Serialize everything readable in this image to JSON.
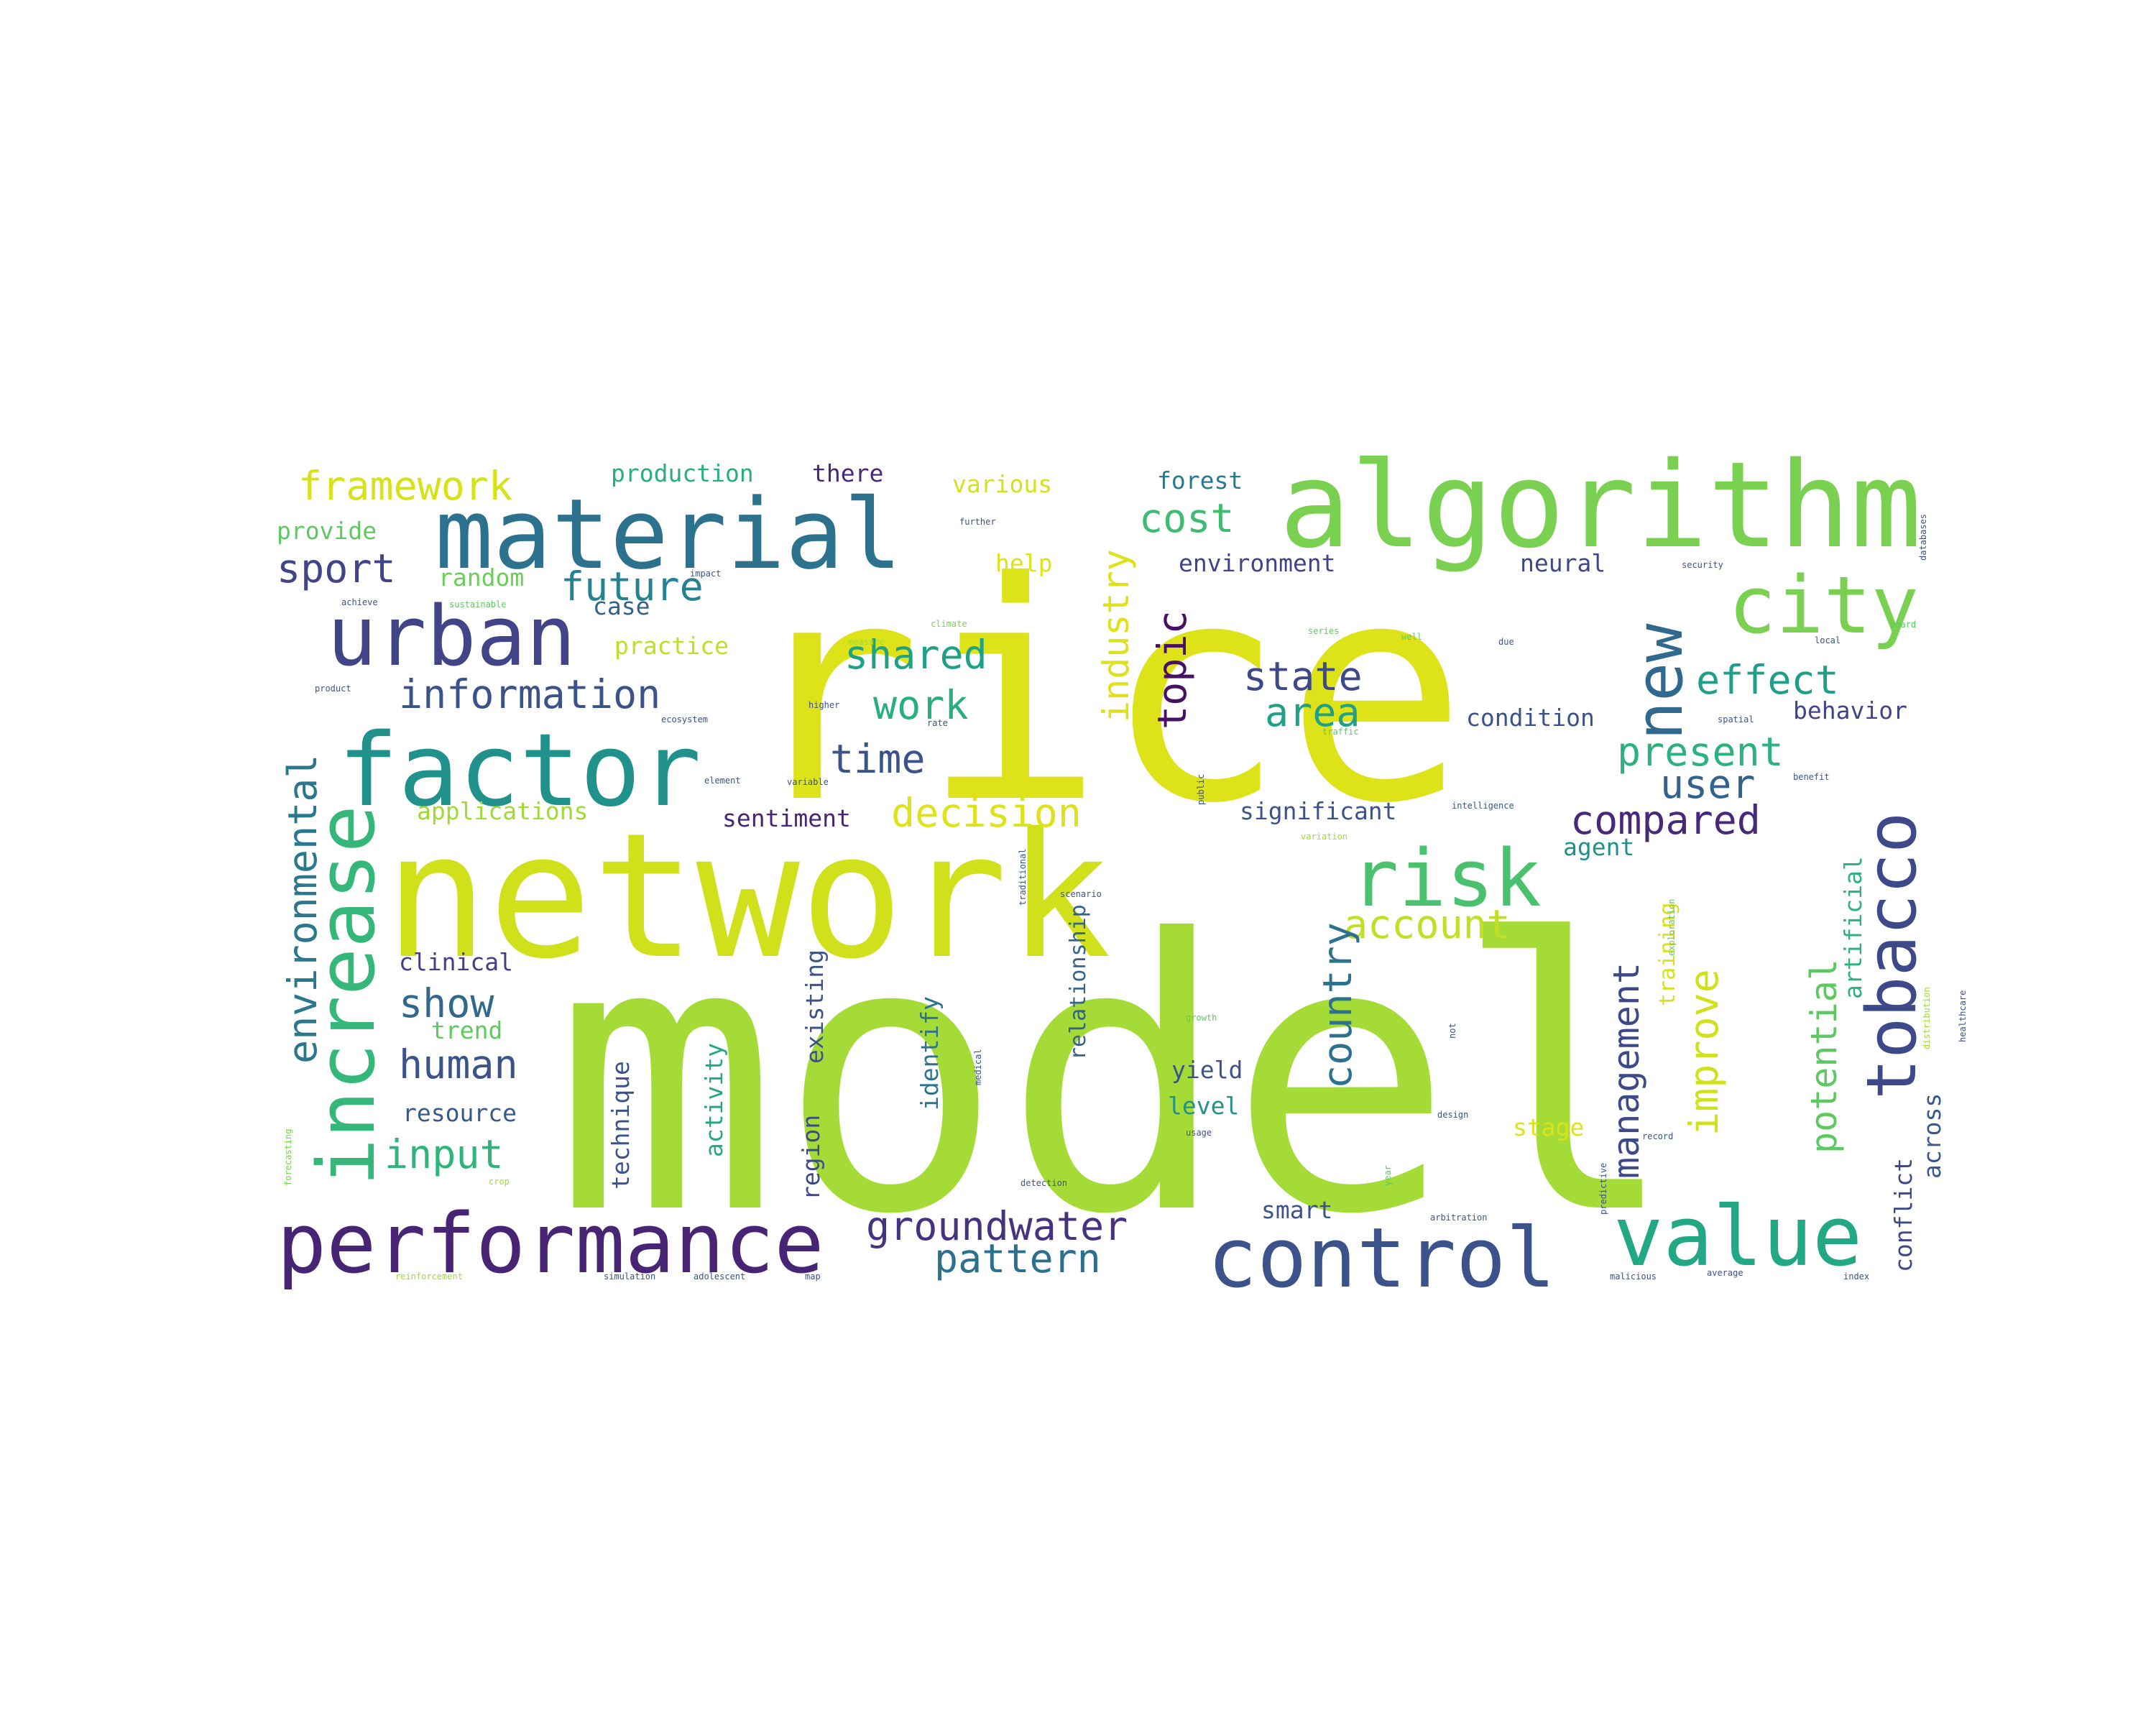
{
  "word_cloud": {
    "words": [
      {
        "text": "model",
        "color": "#a5db36"
      },
      {
        "text": "rice",
        "color": "#dde318"
      },
      {
        "text": "network",
        "color": "#d0e11c"
      },
      {
        "text": "algorithm",
        "color": "#7ad151"
      },
      {
        "text": "material",
        "color": "#2c728e"
      },
      {
        "text": "factor",
        "color": "#21918c"
      },
      {
        "text": "urban",
        "color": "#414487"
      },
      {
        "text": "performance",
        "color": "#482475"
      },
      {
        "text": "control",
        "color": "#3b528b"
      },
      {
        "text": "value",
        "color": "#22a884"
      },
      {
        "text": "tobacco",
        "color": "#3e4989"
      },
      {
        "text": "increase",
        "color": "#35b779"
      },
      {
        "text": "city",
        "color": "#7ad151"
      },
      {
        "text": "new",
        "color": "#31688e"
      },
      {
        "text": "risk",
        "color": "#4ac16d"
      },
      {
        "text": "framework",
        "color": "#d8e219"
      },
      {
        "text": "information",
        "color": "#3b528b"
      },
      {
        "text": "environmental",
        "color": "#2a788e"
      },
      {
        "text": "future",
        "color": "#26828e"
      },
      {
        "text": "groundwater",
        "color": "#46327e"
      },
      {
        "text": "decision",
        "color": "#dde318"
      },
      {
        "text": "shared",
        "color": "#1fa187"
      },
      {
        "text": "effect",
        "color": "#1f9e89"
      },
      {
        "text": "account",
        "color": "#c0df25"
      },
      {
        "text": "pattern",
        "color": "#2d708e"
      },
      {
        "text": "sport",
        "color": "#414487"
      },
      {
        "text": "cost",
        "color": "#3fbc73"
      },
      {
        "text": "industry",
        "color": "#dde318"
      },
      {
        "text": "topic",
        "color": "#471063"
      },
      {
        "text": "state",
        "color": "#3e4989"
      },
      {
        "text": "area",
        "color": "#1fa187"
      },
      {
        "text": "work",
        "color": "#29af7f"
      },
      {
        "text": "time",
        "color": "#3b528b"
      },
      {
        "text": "present",
        "color": "#2db27d"
      },
      {
        "text": "compared",
        "color": "#482878"
      },
      {
        "text": "user",
        "color": "#33638d"
      },
      {
        "text": "show",
        "color": "#31688e"
      },
      {
        "text": "human",
        "color": "#3b528b"
      },
      {
        "text": "input",
        "color": "#2fb47c"
      },
      {
        "text": "country",
        "color": "#2c728e"
      },
      {
        "text": "management",
        "color": "#3e4989"
      },
      {
        "text": "improve",
        "color": "#d0e11c"
      },
      {
        "text": "potential",
        "color": "#5ec962"
      },
      {
        "text": "production",
        "color": "#26ad81"
      },
      {
        "text": "there",
        "color": "#482878"
      },
      {
        "text": "various",
        "color": "#d5e21a"
      },
      {
        "text": "forest",
        "color": "#2a788e"
      },
      {
        "text": "provide",
        "color": "#5ec962"
      },
      {
        "text": "help",
        "color": "#dde318"
      },
      {
        "text": "environment",
        "color": "#404387"
      },
      {
        "text": "neural",
        "color": "#3f4788"
      },
      {
        "text": "random",
        "color": "#6ccd5a"
      },
      {
        "text": "case",
        "color": "#33638d"
      },
      {
        "text": "practice",
        "color": "#bddf26"
      },
      {
        "text": "condition",
        "color": "#3b528b"
      },
      {
        "text": "behavior",
        "color": "#404387"
      },
      {
        "text": "applications",
        "color": "#a0da39"
      },
      {
        "text": "sentiment",
        "color": "#482475"
      },
      {
        "text": "significant",
        "color": "#3b528b"
      },
      {
        "text": "agent",
        "color": "#21918c"
      },
      {
        "text": "artificial",
        "color": "#2db27d"
      },
      {
        "text": "clinical",
        "color": "#433e85"
      },
      {
        "text": "trend",
        "color": "#5ec962"
      },
      {
        "text": "resource",
        "color": "#38598c"
      },
      {
        "text": "technique",
        "color": "#3b528b"
      },
      {
        "text": "activity",
        "color": "#22a884"
      },
      {
        "text": "region",
        "color": "#3e4989"
      },
      {
        "text": "existing",
        "color": "#3b528b"
      },
      {
        "text": "identify",
        "color": "#2c728e"
      },
      {
        "text": "relationship",
        "color": "#33638d"
      },
      {
        "text": "yield",
        "color": "#3b528b"
      },
      {
        "text": "level",
        "color": "#21918c"
      },
      {
        "text": "stage",
        "color": "#dde318"
      },
      {
        "text": "training",
        "color": "#d8e219"
      },
      {
        "text": "across",
        "color": "#38598c"
      },
      {
        "text": "conflict",
        "color": "#3e4989"
      },
      {
        "text": "smart",
        "color": "#3b528b"
      },
      {
        "text": "security",
        "color": "#3b528b"
      },
      {
        "text": "further",
        "color": "#3b528b"
      },
      {
        "text": "achieve",
        "color": "#3b528b"
      },
      {
        "text": "sustainable",
        "color": "#5ec962"
      },
      {
        "text": "impact",
        "color": "#3b528b"
      },
      {
        "text": "climate",
        "color": "#7ad151"
      },
      {
        "text": "series",
        "color": "#5ec962"
      },
      {
        "text": "well",
        "color": "#5ec962"
      },
      {
        "text": "due",
        "color": "#3b528b"
      },
      {
        "text": "local",
        "color": "#3b528b"
      },
      {
        "text": "board",
        "color": "#5ec962"
      },
      {
        "text": "spatial",
        "color": "#3b528b"
      },
      {
        "text": "traffic",
        "color": "#5ec962"
      },
      {
        "text": "intelligence",
        "color": "#3b528b"
      },
      {
        "text": "benefit",
        "color": "#3b528b"
      },
      {
        "text": "public",
        "color": "#3b528b"
      },
      {
        "text": "variable",
        "color": "#3b528b"
      },
      {
        "text": "variation",
        "color": "#a0da39"
      },
      {
        "text": "traditional",
        "color": "#3b528b"
      },
      {
        "text": "scenario",
        "color": "#3b528b"
      },
      {
        "text": "exploration",
        "color": "#5ec962"
      },
      {
        "text": "healthcare",
        "color": "#3b528b"
      },
      {
        "text": "growth",
        "color": "#5ec962"
      },
      {
        "text": "medical",
        "color": "#3b528b"
      },
      {
        "text": "usage",
        "color": "#3b528b"
      },
      {
        "text": "design",
        "color": "#3b528b"
      },
      {
        "text": "record",
        "color": "#3b528b"
      },
      {
        "text": "detection",
        "color": "#3b528b"
      },
      {
        "text": "arbitration",
        "color": "#3b528b"
      },
      {
        "text": "malicious",
        "color": "#3b528b"
      },
      {
        "text": "average",
        "color": "#3b528b"
      },
      {
        "text": "index",
        "color": "#3b528b"
      },
      {
        "text": "reinforcement",
        "color": "#a0da39"
      },
      {
        "text": "simulation",
        "color": "#3b528b"
      },
      {
        "text": "adolescent",
        "color": "#3b528b"
      },
      {
        "text": "map",
        "color": "#3b528b"
      },
      {
        "text": "crop",
        "color": "#a0da39"
      },
      {
        "text": "forecasting",
        "color": "#7ad151"
      },
      {
        "text": "databases",
        "color": "#3b528b"
      },
      {
        "text": "distribution",
        "color": "#a0da39"
      },
      {
        "text": "product",
        "color": "#3b528b"
      },
      {
        "text": "higher",
        "color": "#3b528b"
      },
      {
        "text": "ecosystem",
        "color": "#3b528b"
      },
      {
        "text": "measure",
        "color": "#a0da39"
      },
      {
        "text": "rate",
        "color": "#3b528b"
      },
      {
        "text": "year",
        "color": "#5ec962"
      },
      {
        "text": "predictive",
        "color": "#3b528b"
      },
      {
        "text": "not",
        "color": "#3b528b"
      },
      {
        "text": "element",
        "color": "#3b528b"
      }
    ]
  }
}
